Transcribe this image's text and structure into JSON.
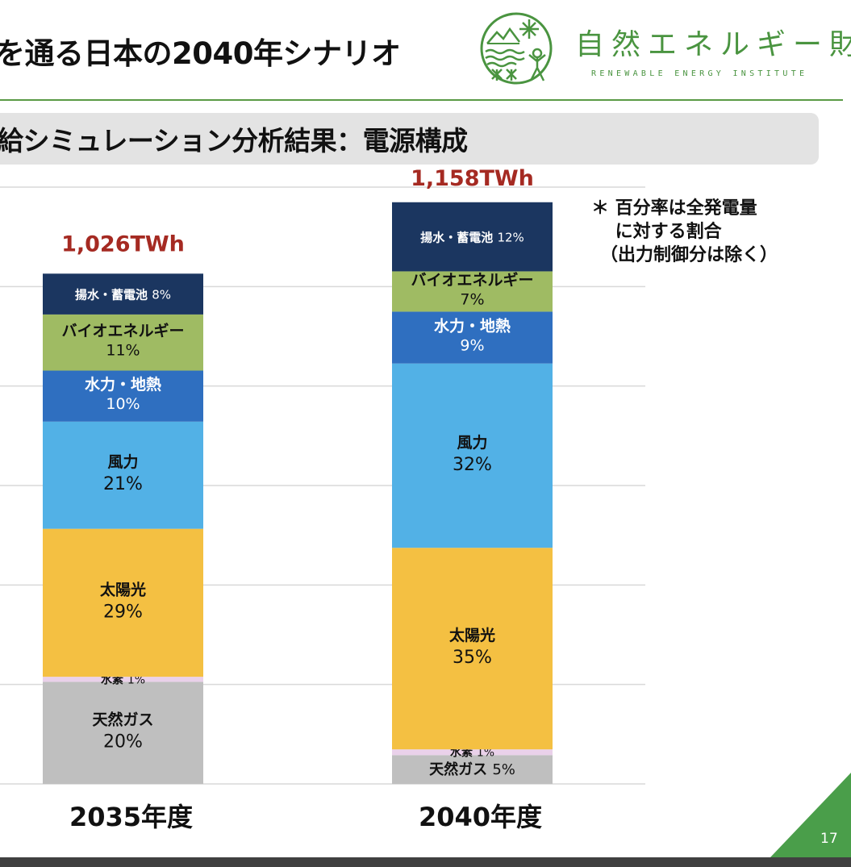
{
  "header": {
    "title": "を通る日本の2040年シナリオ",
    "logo": {
      "icon": "nature-circle-logo-icon",
      "name_jp": "自然エネルギー財団",
      "name_en": "RENEWABLE ENERGY INSTITUTE"
    }
  },
  "section": {
    "subtitle": "給シミュレーション分析結果：電源構成"
  },
  "note": {
    "lines": [
      "＊ 百分率は全発電量",
      "　 に対する割合",
      "　（出力制御分は除く）"
    ]
  },
  "footer": {
    "page_number": "17",
    "accent_color": "#4a9e4a"
  },
  "chart_data": {
    "type": "bar",
    "stacked": true,
    "title": "電源構成",
    "xlabel": "",
    "ylabel": "",
    "ylim": [
      0,
      1200
    ],
    "y_unit": "TWh",
    "grid": true,
    "gridline_step": 200,
    "categories": [
      "2035年度",
      "2040年度"
    ],
    "totals": [
      1026,
      1158
    ],
    "total_labels": [
      "1,026TWh",
      "1,158TWh"
    ],
    "stack_order_bottom_to_top": [
      "天然ガス",
      "水素",
      "太陽光",
      "風力",
      "水力・地熱",
      "バイオエネルギー",
      "揚水・蓄電池"
    ],
    "series": [
      {
        "name": "天然ガス",
        "color": "#bfbfbf",
        "text_color": "#111111",
        "values_percent": [
          20,
          5
        ],
        "labels": [
          "20%",
          "5%"
        ],
        "inline": [
          false,
          true
        ]
      },
      {
        "name": "水素",
        "color": "#ead1ea",
        "text_color": "#111111",
        "values_percent": [
          1,
          1
        ],
        "labels": [
          "1%",
          "1%"
        ],
        "inline": [
          true,
          true
        ]
      },
      {
        "name": "太陽光",
        "color": "#f4c042",
        "text_color": "#111111",
        "values_percent": [
          29,
          35
        ],
        "labels": [
          "29%",
          "35%"
        ],
        "inline": [
          false,
          false
        ]
      },
      {
        "name": "風力",
        "color": "#52b1e6",
        "text_color": "#111111",
        "values_percent": [
          21,
          32
        ],
        "labels": [
          "21%",
          "32%"
        ],
        "inline": [
          false,
          false
        ]
      },
      {
        "name": "水力・地熱",
        "color": "#2f6fc0",
        "text_color": "#ffffff",
        "values_percent": [
          10,
          9
        ],
        "labels": [
          "10%",
          "9%"
        ],
        "inline": [
          false,
          false
        ]
      },
      {
        "name": "バイオエネルギー",
        "color": "#9fbb63",
        "text_color": "#111111",
        "values_percent": [
          11,
          7
        ],
        "labels": [
          "11%",
          "7%"
        ],
        "inline": [
          false,
          false
        ]
      },
      {
        "name": "揚水・蓄電池",
        "color": "#1b3660",
        "text_color": "#ffffff",
        "values_percent": [
          8,
          12
        ],
        "labels": [
          "8%",
          "12%"
        ],
        "inline": [
          true,
          true
        ]
      }
    ],
    "total_label_color": "#a52a22"
  }
}
